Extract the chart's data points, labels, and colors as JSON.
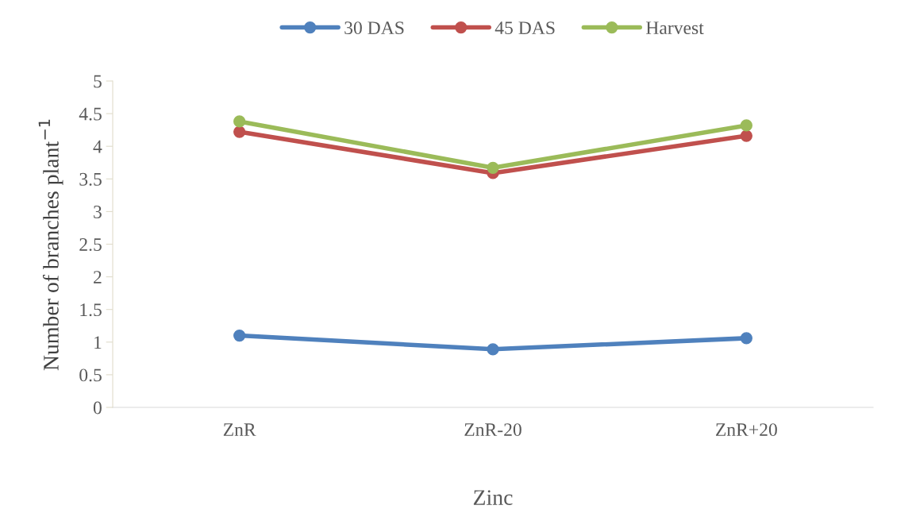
{
  "chart_data": {
    "type": "line",
    "xlabel": "Zinc",
    "ylabel": "Number of branches plant$^{−1}$",
    "categories": [
      "ZnR",
      "ZnR-20",
      "ZnR+20"
    ],
    "series": [
      {
        "name": "30 DAS",
        "color": "#4f81bd",
        "values": [
          1.1,
          0.89,
          1.06
        ]
      },
      {
        "name": "45 DAS",
        "color": "#c0504d",
        "values": [
          4.22,
          3.59,
          4.16
        ]
      },
      {
        "name": "Harvest",
        "color": "#9bbb59",
        "values": [
          4.38,
          3.67,
          4.32
        ]
      }
    ],
    "ylim": [
      0,
      5
    ],
    "yticks": [
      0,
      0.5,
      1,
      1.5,
      2,
      2.5,
      3,
      3.5,
      4,
      4.5,
      5
    ],
    "grid": false,
    "legend": "top",
    "marker": "circle",
    "line_style": "solid"
  }
}
